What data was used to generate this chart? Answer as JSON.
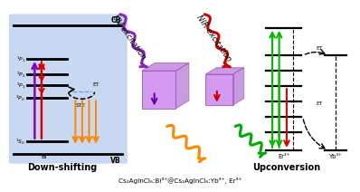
{
  "bg_color": "#ffffff",
  "left_panel_color": "#c8d8f0",
  "title_text": "UV excitation",
  "title2_text": "NIR excitation",
  "bottom_label": "Down-shifting",
  "bottom_label2": "Upconversion",
  "bottom_formula": "Cs₂AgInCl₆:Bi³⁺@Cs₂AgInCl₆:Yb³⁺, Er³⁺",
  "cb_label": "CB",
  "vb_label": "VB",
  "bi_label": "Bi³⁺",
  "yb_label": "Yb³⁺",
  "er_label": "Er³⁺",
  "ste_label": "STE",
  "et_label": "ET"
}
